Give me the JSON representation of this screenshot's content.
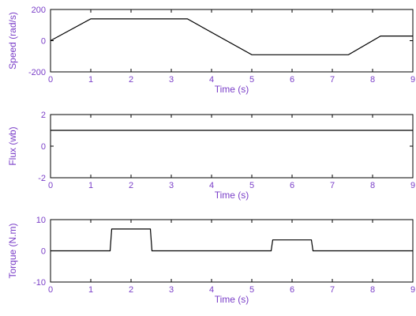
{
  "colors": {
    "label": "#7a3ec8",
    "line": "#000000",
    "frame": "#000000"
  },
  "chart_data": [
    {
      "type": "line",
      "title": "",
      "xlabel": "Time (s)",
      "ylabel": "Speed (rad/s)",
      "xlim": [
        0,
        9
      ],
      "ylim": [
        -200,
        200
      ],
      "xticks": [
        "0",
        "1",
        "2",
        "3",
        "4",
        "5",
        "6",
        "7",
        "8",
        "9"
      ],
      "yticks": [
        "-200",
        "0",
        "200"
      ],
      "grid": false,
      "series": [
        {
          "x": [
            0,
            1,
            3.4,
            5,
            7.4,
            8.2,
            9
          ],
          "y": [
            0,
            140,
            140,
            -90,
            -90,
            30,
            30
          ]
        }
      ]
    },
    {
      "type": "line",
      "title": "",
      "xlabel": "Time (s)",
      "ylabel": "Flux (wb)",
      "xlim": [
        0,
        9
      ],
      "ylim": [
        -2,
        2
      ],
      "xticks": [
        "0",
        "1",
        "2",
        "3",
        "4",
        "5",
        "6",
        "7",
        "8",
        "9"
      ],
      "yticks": [
        "-2",
        "0",
        "2"
      ],
      "grid": false,
      "series": [
        {
          "x": [
            0,
            9
          ],
          "y": [
            1,
            1
          ]
        }
      ]
    },
    {
      "type": "line",
      "title": "",
      "xlabel": "Time (s)",
      "ylabel": "Torque (N.m)",
      "xlim": [
        0,
        9
      ],
      "ylim": [
        -10,
        10
      ],
      "xticks": [
        "0",
        "1",
        "2",
        "3",
        "4",
        "5",
        "6",
        "7",
        "8",
        "9"
      ],
      "yticks": [
        "-10",
        "0",
        "10"
      ],
      "grid": false,
      "series": [
        {
          "x": [
            0,
            1.48,
            1.52,
            2.48,
            2.52,
            5.48,
            5.52,
            6.48,
            6.52,
            9
          ],
          "y": [
            0,
            0,
            7,
            7,
            0,
            0,
            3.5,
            3.5,
            0,
            0
          ]
        }
      ]
    }
  ]
}
